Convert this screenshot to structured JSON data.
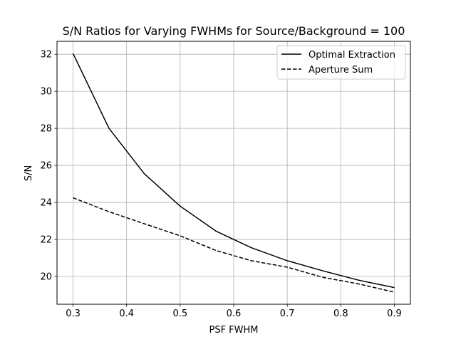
{
  "chart_data": {
    "type": "line",
    "title": "S/N Ratios for Varying FWHMs for Source/Background = 100",
    "xlabel": "PSF FWHM",
    "ylabel": "S/N",
    "xlim": [
      0.27,
      0.93
    ],
    "ylim": [
      18.5,
      32.7
    ],
    "xticks": [
      0.3,
      0.4,
      0.5,
      0.6,
      0.7,
      0.8,
      0.9
    ],
    "xtick_labels": [
      "0.3",
      "0.4",
      "0.5",
      "0.6",
      "0.7",
      "0.8",
      "0.9"
    ],
    "yticks": [
      20,
      22,
      24,
      26,
      28,
      30,
      32
    ],
    "ytick_labels": [
      "20",
      "22",
      "24",
      "26",
      "28",
      "30",
      "32"
    ],
    "grid": true,
    "legend_position": "top-right",
    "series": [
      {
        "name": "Optimal Extraction",
        "style": "solid",
        "color": "#000000",
        "x": [
          0.3,
          0.367,
          0.433,
          0.5,
          0.567,
          0.633,
          0.7,
          0.767,
          0.833,
          0.9
        ],
        "y": [
          32.05,
          28.0,
          25.55,
          23.8,
          22.45,
          21.55,
          20.85,
          20.3,
          19.8,
          19.4
        ]
      },
      {
        "name": "Aperture Sum",
        "style": "dashed",
        "color": "#000000",
        "x": [
          0.3,
          0.367,
          0.433,
          0.5,
          0.567,
          0.633,
          0.7,
          0.767,
          0.833,
          0.9
        ],
        "y": [
          24.25,
          23.5,
          22.85,
          22.2,
          21.4,
          20.85,
          20.5,
          19.95,
          19.6,
          19.15
        ]
      }
    ]
  }
}
